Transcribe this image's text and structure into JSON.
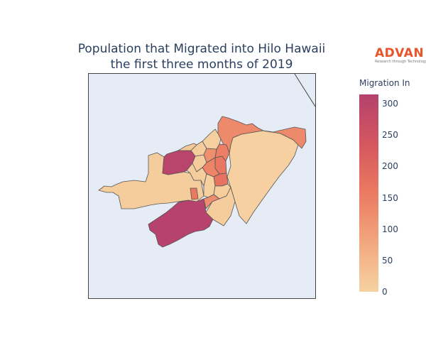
{
  "title": {
    "line1": "Population that Migrated into Hilo Hawaii",
    "line2": "the first three months of 2019"
  },
  "logo": {
    "main": "ADVAN",
    "sub": "Research through Technology"
  },
  "colorbar": {
    "title": "Migration In",
    "ticks": [
      "300",
      "250",
      "200",
      "150",
      "100",
      "50",
      "0"
    ],
    "min": 0,
    "max": 315,
    "colors": [
      "#f6d3a2",
      "#f2a77e",
      "#eb7a62",
      "#d4575f",
      "#b5416e"
    ]
  },
  "map": {
    "background": "#e5ecf6",
    "border_color": "#444444",
    "regions": [
      {
        "name": "east-large-tract",
        "value": 5
      },
      {
        "name": "west-tract",
        "value": 10
      },
      {
        "name": "northeast-coast-tract",
        "value": 130
      },
      {
        "name": "northwest-tract",
        "value": 305
      },
      {
        "name": "south-tract",
        "value": 310
      },
      {
        "name": "central-tract-a",
        "value": 165
      },
      {
        "name": "central-tract-b",
        "value": 140
      },
      {
        "name": "central-tract-c",
        "value": 150
      },
      {
        "name": "central-tract-d",
        "value": 175
      },
      {
        "name": "central-tract-e",
        "value": 120
      },
      {
        "name": "central-tract-f",
        "value": 15
      },
      {
        "name": "central-tract-g",
        "value": 10
      },
      {
        "name": "central-tract-h",
        "value": 8
      },
      {
        "name": "central-tract-i",
        "value": 12
      },
      {
        "name": "central-tract-j",
        "value": 6
      },
      {
        "name": "central-tract-k",
        "value": 9
      },
      {
        "name": "small-tract-south",
        "value": 160
      },
      {
        "name": "small-tract-southeast",
        "value": 125
      },
      {
        "name": "small-tract-mid",
        "value": 10
      },
      {
        "name": "north-strip",
        "value": 20
      }
    ]
  }
}
